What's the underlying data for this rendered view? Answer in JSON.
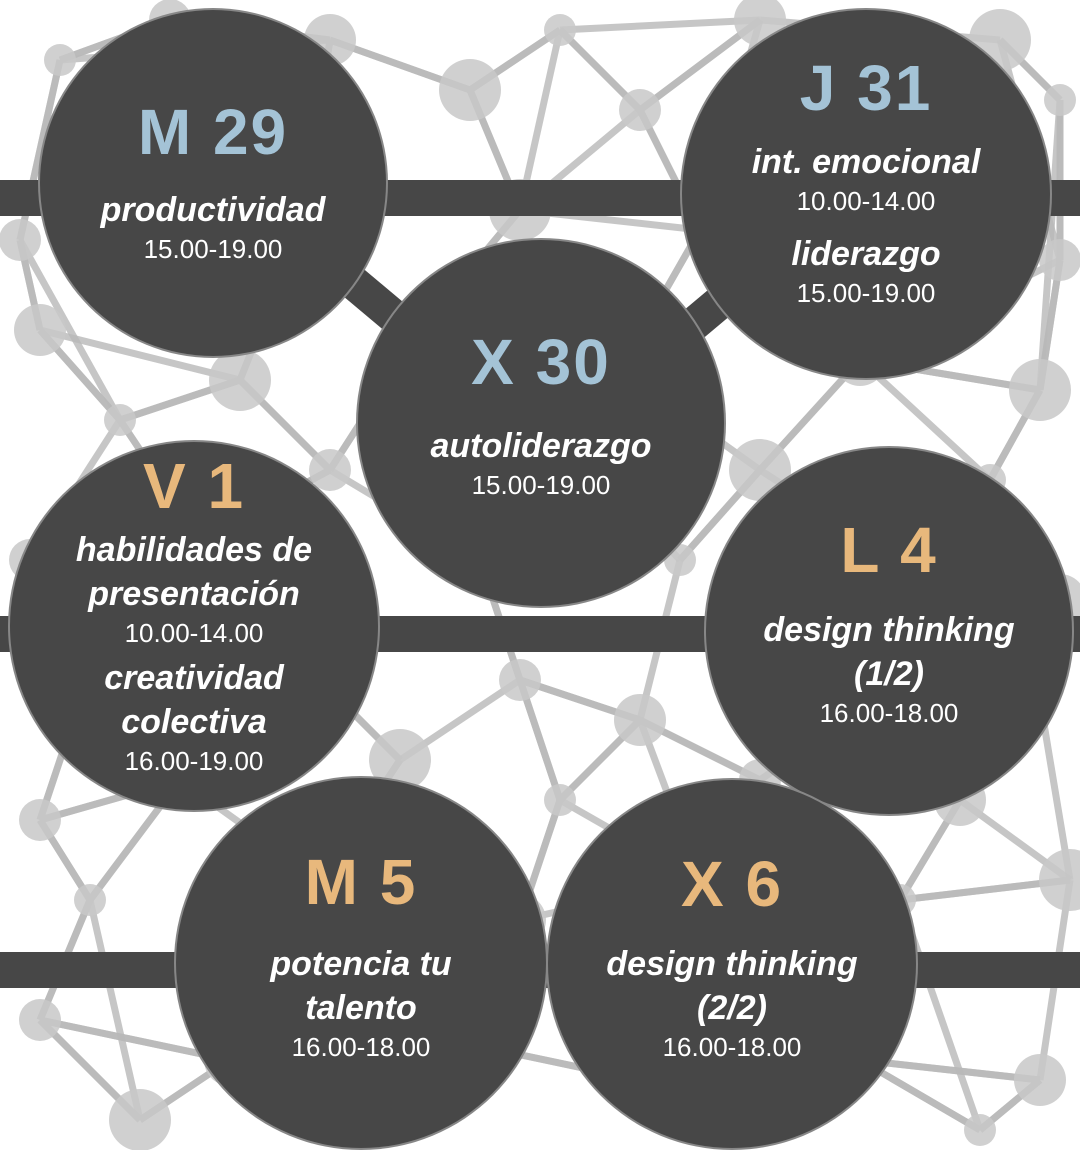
{
  "colors": {
    "circle_fill": "#474747",
    "day_blue": "#a4c3d6",
    "day_orange": "#e8b87c",
    "text": "#ffffff",
    "network_node": "#c8c8c8",
    "network_line": "#b9b9b9"
  },
  "sessions": [
    {
      "day": "M 29",
      "day_color": "blue",
      "items": [
        {
          "topic": "productividad",
          "time": "15.00-19.00"
        }
      ]
    },
    {
      "day": "X 30",
      "day_color": "blue",
      "items": [
        {
          "topic": "autoliderazgo",
          "time": "15.00-19.00"
        }
      ]
    },
    {
      "day": "J 31",
      "day_color": "blue",
      "items": [
        {
          "topic": "int. emocional",
          "time": "10.00-14.00"
        },
        {
          "topic": "liderazgo",
          "time": "15.00-19.00"
        }
      ]
    },
    {
      "day": "V 1",
      "day_color": "orange",
      "items": [
        {
          "topic": "habilidades de presentación",
          "time": "10.00-14.00"
        },
        {
          "topic": "creatividad colectiva",
          "time": "16.00-19.00"
        }
      ]
    },
    {
      "day": "L 4",
      "day_color": "orange",
      "items": [
        {
          "topic": "design thinking (1/2)",
          "time": "16.00-18.00"
        }
      ]
    },
    {
      "day": "M 5",
      "day_color": "orange",
      "items": [
        {
          "topic": "potencia tu talento",
          "time": "16.00-18.00"
        }
      ]
    },
    {
      "day": "X 6",
      "day_color": "orange",
      "items": [
        {
          "topic": "design thinking (2/2)",
          "time": "16.00-18.00"
        }
      ]
    }
  ]
}
